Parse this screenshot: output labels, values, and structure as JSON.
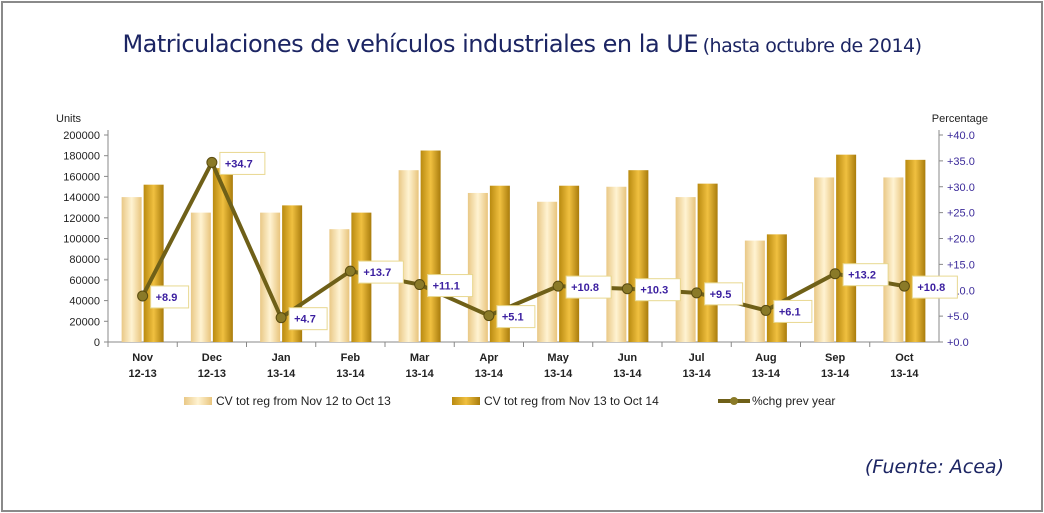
{
  "title": {
    "main": "Matriculaciones de vehículos industriales en la UE",
    "sub": "(hasta octubre de 2014)"
  },
  "source": "(Fuente: Acea)",
  "colors": {
    "series1": "#f5dca0",
    "series2": "#d9a520",
    "line": "#6f6018",
    "labels": "#3b1fa0",
    "title": "#1c2563"
  },
  "chart_data": {
    "type": "bar+line",
    "ylabel": "Units",
    "y2label": "Percentage",
    "ylim": [
      0,
      200000
    ],
    "y2lim": [
      0,
      40
    ],
    "yticks": [
      "0",
      "20000",
      "40000",
      "60000",
      "80000",
      "100000",
      "120000",
      "140000",
      "160000",
      "180000",
      "200000"
    ],
    "y2ticks": [
      "+0.0",
      "+5.0",
      "+10.0",
      "+15.0",
      "+20.0",
      "+25.0",
      "+30.0",
      "+35.0",
      "+40.0"
    ],
    "categories": [
      [
        "Nov",
        "12-13"
      ],
      [
        "Dec",
        "12-13"
      ],
      [
        "Jan",
        "13-14"
      ],
      [
        "Feb",
        "13-14"
      ],
      [
        "Mar",
        "13-14"
      ],
      [
        "Apr",
        "13-14"
      ],
      [
        "May",
        "13-14"
      ],
      [
        "Jun",
        "13-14"
      ],
      [
        "Jul",
        "13-14"
      ],
      [
        "Aug",
        "13-14"
      ],
      [
        "Sep",
        "13-14"
      ],
      [
        "Oct",
        "13-14"
      ]
    ],
    "series": [
      {
        "name": "CV tot reg from Nov 12 to Oct 13",
        "type": "bar",
        "values": [
          140000,
          125000,
          125000,
          109000,
          166000,
          144000,
          135500,
          150000,
          140000,
          98000,
          159000,
          159000
        ]
      },
      {
        "name": "CV tot reg from Nov 13 to Oct 14",
        "type": "bar",
        "values": [
          152000,
          168000,
          132000,
          125000,
          185000,
          151000,
          151000,
          166000,
          153000,
          104000,
          181000,
          176000
        ]
      },
      {
        "name": "%chg prev year",
        "type": "line",
        "axis": "right",
        "values": [
          8.9,
          34.7,
          4.7,
          13.7,
          11.1,
          5.1,
          10.8,
          10.3,
          9.5,
          6.1,
          13.2,
          10.8
        ],
        "labels": [
          "+8.9",
          "+34.7",
          "+4.7",
          "+13.7",
          "+11.1",
          "+5.1",
          "+10.8",
          "+10.3",
          "+9.5",
          "+6.1",
          "+13.2",
          "+10.8"
        ]
      }
    ],
    "legend": "bottom",
    "grid": false
  }
}
